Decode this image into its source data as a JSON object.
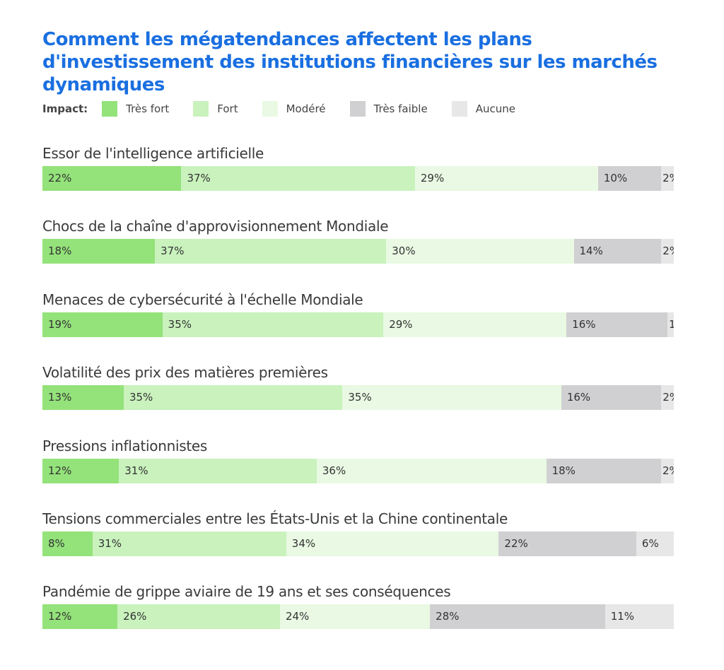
{
  "chart_data": {
    "type": "bar",
    "orientation": "horizontal-stacked",
    "title": "Comment les mégatendances affectent les plans d'investissement des institutions financières sur les marchés dynamiques",
    "legend_label": "Impact:",
    "legend_position": "top-left",
    "series": [
      {
        "name": "Très fort",
        "color": "#94e27a"
      },
      {
        "name": "Fort",
        "color": "#c9f2bd"
      },
      {
        "name": "Modéré",
        "color": "#e9f9e3"
      },
      {
        "name": "Très faible",
        "color": "#d0d0d2"
      },
      {
        "name": "Aucune",
        "color": "#e7e7e7"
      }
    ],
    "categories": [
      "Essor de l'intelligence artificielle",
      "Chocs de la chaîne d'approvisionnement Mondiale",
      "Menaces de cybersécurité à l'échelle Mondiale",
      "Volatilité des prix des matières premières",
      "Pressions inflationnistes",
      "Tensions commerciales entre les États-Unis et la Chine continentale",
      "Pandémie de grippe aviaire de 19 ans et ses conséquences"
    ],
    "values": [
      [
        22,
        37,
        29,
        10,
        2
      ],
      [
        18,
        37,
        30,
        14,
        2
      ],
      [
        19,
        35,
        29,
        16,
        1
      ],
      [
        13,
        35,
        35,
        16,
        2
      ],
      [
        12,
        31,
        36,
        18,
        2
      ],
      [
        8,
        31,
        34,
        22,
        6
      ],
      [
        12,
        26,
        24,
        28,
        11
      ]
    ],
    "unit": "%"
  }
}
